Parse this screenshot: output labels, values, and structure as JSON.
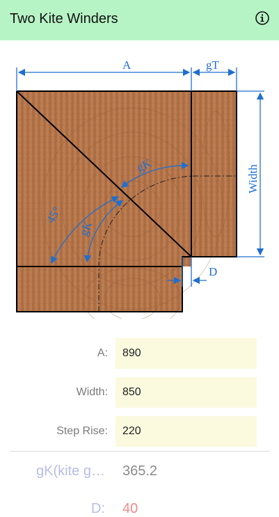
{
  "header": {
    "title": "Two Kite Winders",
    "info_icon": "info-circle-icon"
  },
  "diagram": {
    "labels": {
      "a": "A",
      "gt": "gT",
      "width": "Width",
      "d": "D",
      "gk_top": "gK",
      "gk_left": "gK",
      "angle": "45°"
    },
    "colors": {
      "dimension": "#1f6fd0",
      "wood": "#b5764a",
      "outline": "#000000"
    }
  },
  "form": {
    "a_label": "A:",
    "a_value": "890",
    "width_label": "Width:",
    "width_value": "850",
    "rise_label": "Step Rise:",
    "rise_value": "220"
  },
  "results": {
    "gk_label": "gK(kite g…",
    "gk_value": "365.2",
    "d_label": "D:",
    "d_value": "40",
    "d_value_color": "#f08b8b"
  }
}
